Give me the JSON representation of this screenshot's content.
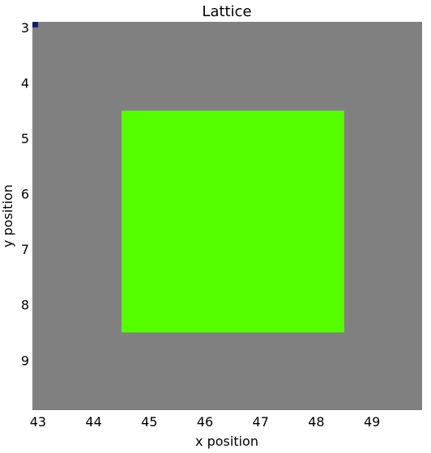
{
  "chart_data": {
    "type": "heatmap",
    "title": "Lattice",
    "xlabel": "x position",
    "ylabel": "y position",
    "xlim": [
      42.9,
      49.9
    ],
    "ylim": [
      9.9,
      2.9
    ],
    "x_ticks": [
      "43",
      "44",
      "45",
      "46",
      "47",
      "48",
      "49"
    ],
    "y_ticks": [
      "3",
      "4",
      "5",
      "6",
      "7",
      "8",
      "9"
    ],
    "background_color": "#808080",
    "cells": [
      {
        "x0": 44.5,
        "x1": 48.5,
        "y0": 4.5,
        "y1": 8.5,
        "color": "#55ff00"
      },
      {
        "x0": 42.9,
        "x1": 43.0,
        "y0": 2.9,
        "y1": 3.0,
        "color": "#1a1a66"
      }
    ]
  }
}
